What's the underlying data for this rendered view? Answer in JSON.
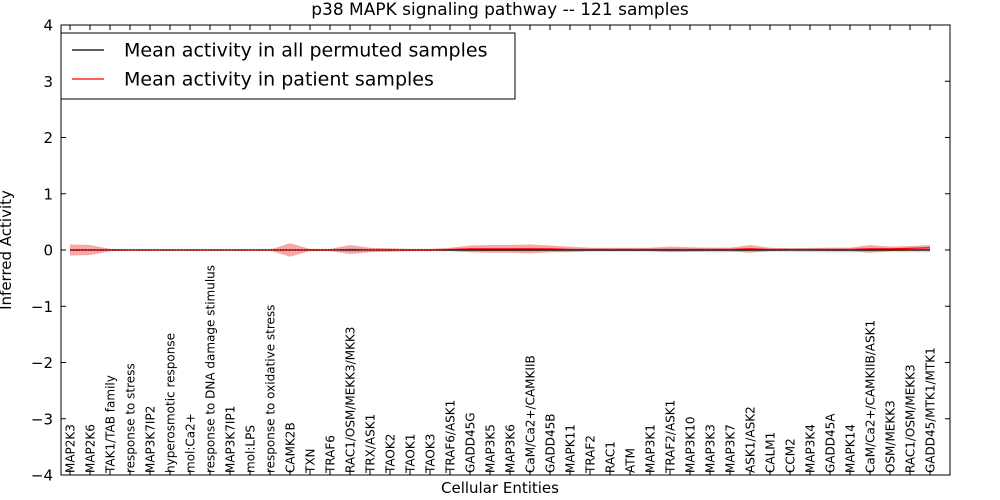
{
  "chart_data": {
    "type": "line",
    "title": "p38 MAPK signaling pathway -- 121 samples",
    "xlabel": "Cellular Entities",
    "ylabel": "Inferred Activity",
    "ylim": [
      -4,
      4
    ],
    "yticks": [
      4,
      3,
      2,
      1,
      0,
      -1,
      -2,
      -3,
      -4
    ],
    "ytick_labels": [
      "4",
      "3",
      "2",
      "1",
      "0",
      "−1",
      "−2",
      "−3",
      "−4"
    ],
    "categories": [
      "MAP2K3",
      "MAP2K6",
      "TAK1/TAB family",
      "response to stress",
      "MAP3K7IP2",
      "hyperosmotic response",
      "mol:Ca2+",
      "response to DNA damage stimulus",
      "MAP3K7IP1",
      "mol:LPS",
      "response to oxidative stress",
      "CAMK2B",
      "TXN",
      "TRAF6",
      "RAC1/OSM/MEKK3/MKK3",
      "TRX/ASK1",
      "TAOK2",
      "TAOK1",
      "TAOK3",
      "TRAF6/ASK1",
      "GADD45G",
      "MAP3K5",
      "MAP3K6",
      "CaM/Ca2+/CAMKIIB",
      "GADD45B",
      "MAPK11",
      "TRAF2",
      "RAC1",
      "ATM",
      "MAP3K1",
      "TRAF2/ASK1",
      "MAP3K10",
      "MAP3K3",
      "MAP3K7",
      "ASK1/ASK2",
      "CALM1",
      "CCM2",
      "MAP3K4",
      "GADD45A",
      "MAPK14",
      "CaM/Ca2+/CAMKIIB/ASK1",
      "OSM/MEKK3",
      "RAC1/OSM/MEKK3",
      "GADD45/MTK1/MTK1"
    ],
    "legend_position": "top-left",
    "series": [
      {
        "name": "Mean activity in all permuted samples",
        "color": "#000000",
        "band_color": "#bbbbbb",
        "values": [
          0,
          0,
          0,
          0,
          0,
          0,
          0,
          0,
          0,
          0,
          0,
          0,
          0,
          0,
          0,
          0,
          0,
          0,
          0,
          0,
          0,
          0,
          0,
          0,
          0,
          0,
          0,
          0,
          0,
          0,
          0,
          0,
          0,
          0,
          0,
          0,
          0,
          0,
          0,
          0,
          0,
          0,
          0,
          0
        ],
        "spread": [
          0.02,
          0.02,
          0.02,
          0.02,
          0.02,
          0.02,
          0.02,
          0.02,
          0.02,
          0.02,
          0.02,
          0.02,
          0.02,
          0.02,
          0.03,
          0.03,
          0.02,
          0.02,
          0.02,
          0.02,
          0.03,
          0.03,
          0.03,
          0.03,
          0.03,
          0.03,
          0.03,
          0.03,
          0.03,
          0.03,
          0.03,
          0.03,
          0.04,
          0.04,
          0.03,
          0.03,
          0.03,
          0.04,
          0.04,
          0.04,
          0.04,
          0.04,
          0.04,
          0.04
        ]
      },
      {
        "name": "Mean activity in patient samples",
        "color": "#ff0000",
        "band_color": "#f07070",
        "values": [
          0,
          0,
          0,
          0,
          0,
          0,
          0,
          0,
          0,
          0,
          0,
          0,
          0,
          0,
          0.01,
          0,
          0,
          0,
          0,
          0.01,
          0.02,
          0.02,
          0.02,
          0.02,
          0.02,
          0.01,
          0.01,
          0.01,
          0.01,
          0.01,
          0.01,
          0.01,
          0.01,
          0.01,
          0.02,
          0.01,
          0.01,
          0.01,
          0.01,
          0.01,
          0.02,
          0.02,
          0.03,
          0.04
        ],
        "spread": [
          0.1,
          0.09,
          0.02,
          0.01,
          0.01,
          0.01,
          0.01,
          0.01,
          0.01,
          0.01,
          0.01,
          0.12,
          0.02,
          0.02,
          0.08,
          0.04,
          0.03,
          0.02,
          0.02,
          0.03,
          0.06,
          0.07,
          0.07,
          0.08,
          0.06,
          0.05,
          0.03,
          0.03,
          0.03,
          0.03,
          0.05,
          0.04,
          0.03,
          0.03,
          0.07,
          0.03,
          0.02,
          0.02,
          0.03,
          0.03,
          0.07,
          0.04,
          0.04,
          0.05
        ]
      }
    ]
  }
}
